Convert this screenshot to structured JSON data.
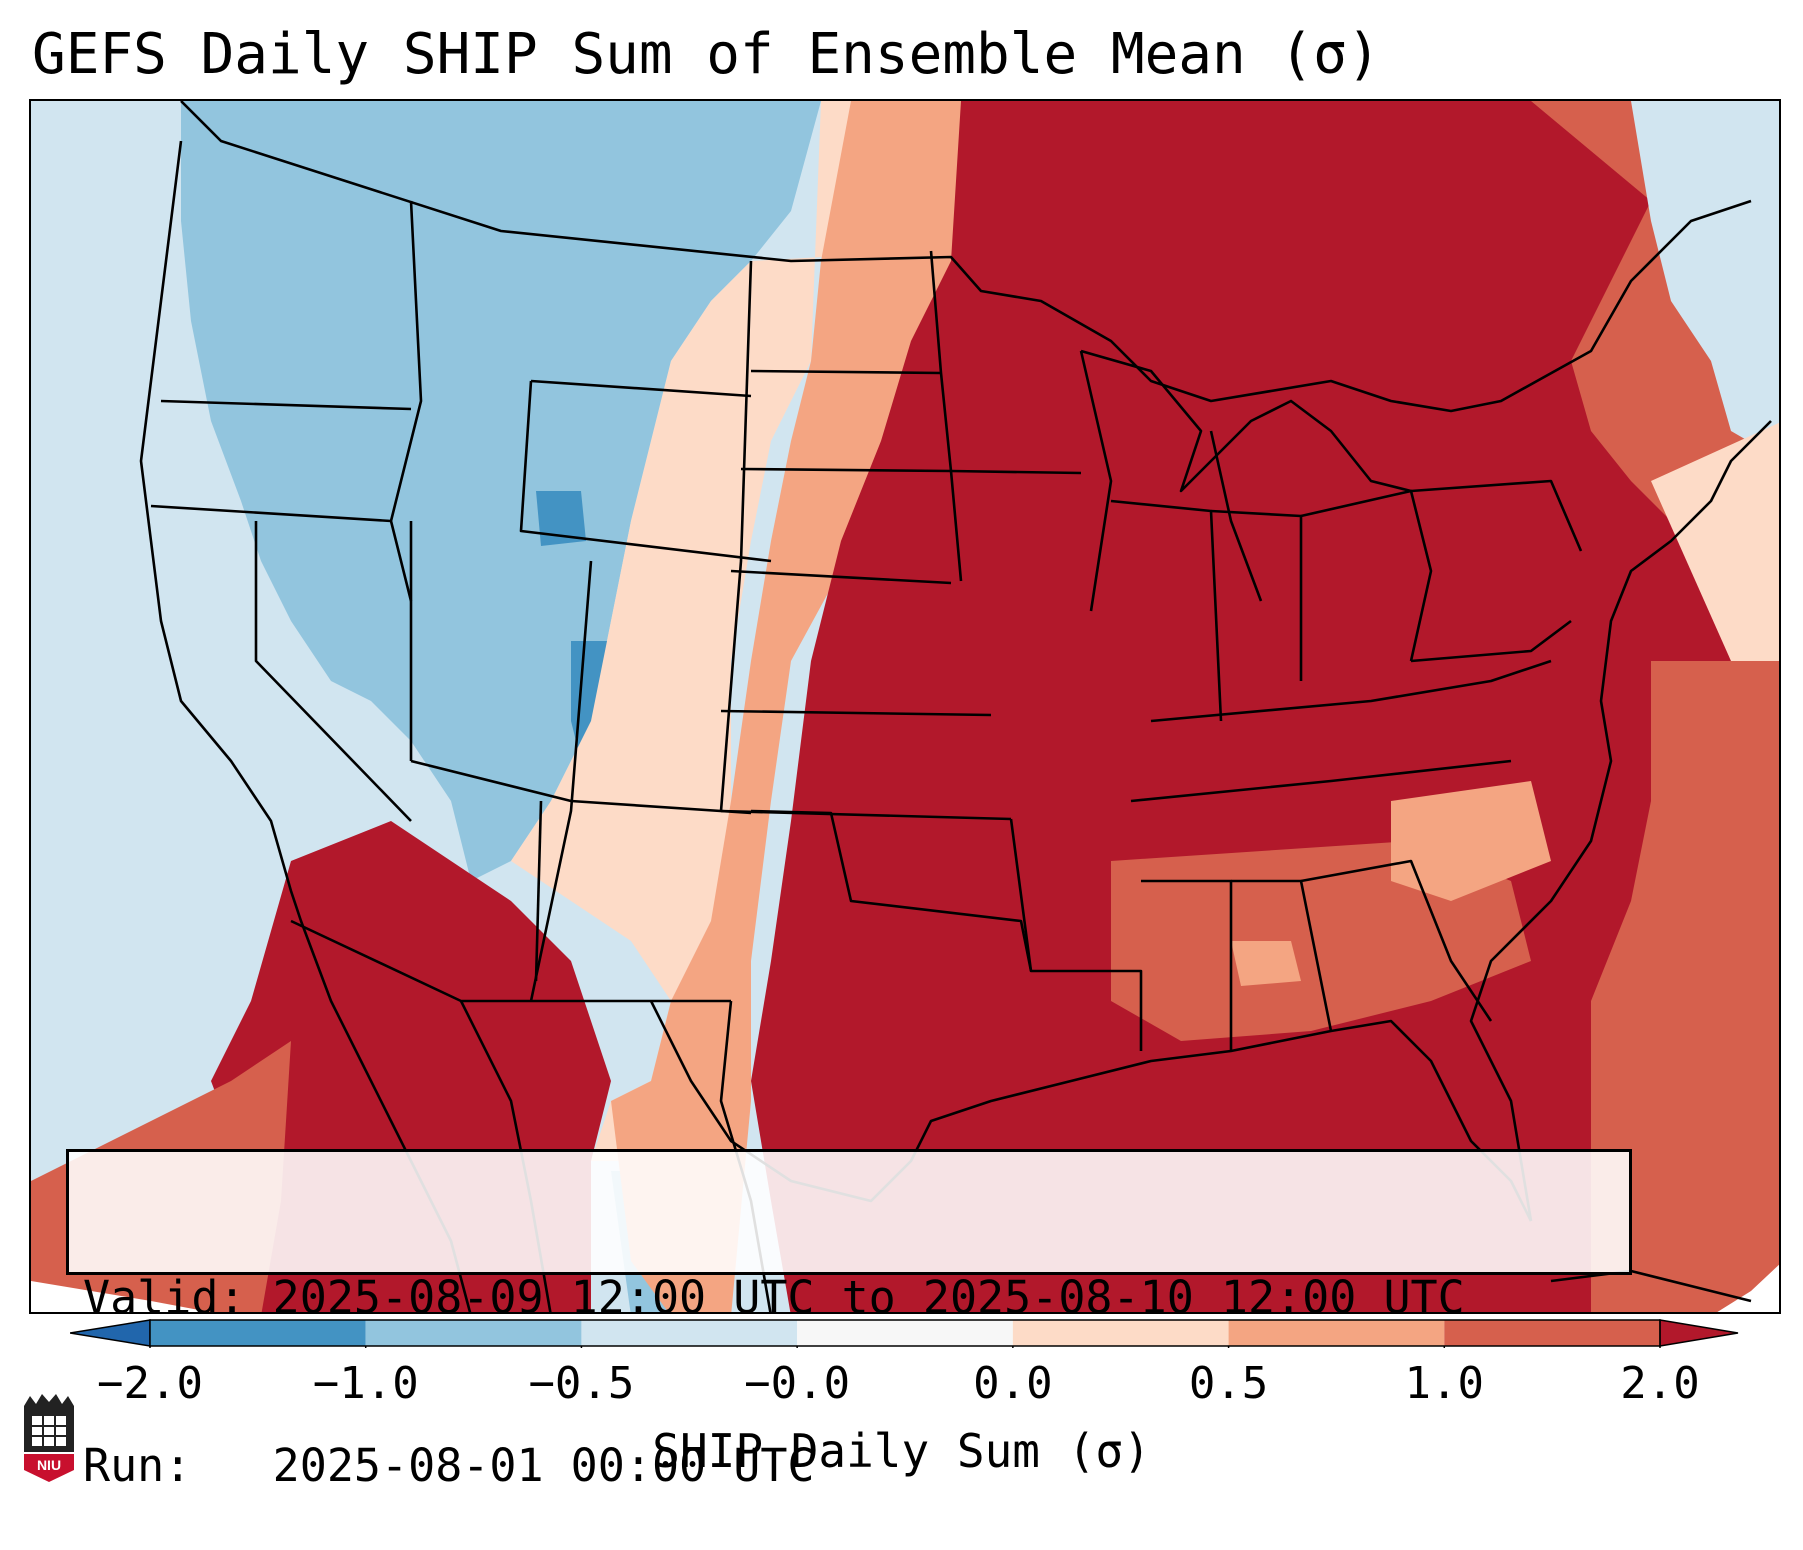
{
  "title": "GEFS Daily SHIP Sum of Ensemble Mean (σ)",
  "info": {
    "valid_label": "Valid:",
    "valid_value": "2025-08-09 12:00 UTC to 2025-08-10 12:00 UTC",
    "run_label": "Run:",
    "run_value": "2025-08-01 00:00 UTC"
  },
  "colorbar": {
    "label": "SHIP Daily Sum (σ)",
    "ticks": [
      "−2.0",
      "−1.0",
      "−0.5",
      "−0.0",
      "0.0",
      "0.5",
      "1.0",
      "2.0"
    ],
    "colors": [
      "#4393c3",
      "#92c5de",
      "#d1e5f0",
      "#f7f7f7",
      "#fddbc7",
      "#f4a582",
      "#d6604d",
      "#b2182b"
    ],
    "extend": "both",
    "under_color": "#2166ac",
    "over_color": "#b2182b"
  },
  "map": {
    "background_color": "#d1e5f0",
    "outside_domain_color": "#ffffff",
    "border_color": "#000000"
  },
  "logo": {
    "text": "NIU",
    "name": "niu-logo-icon"
  }
}
